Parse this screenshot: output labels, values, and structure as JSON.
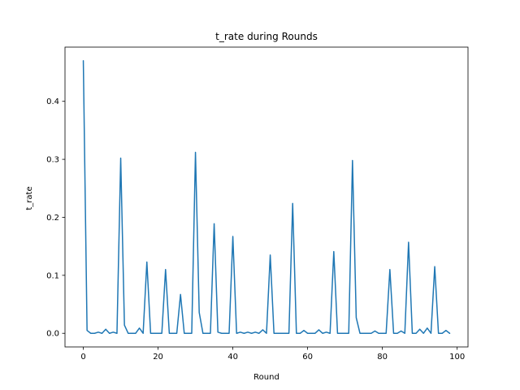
{
  "chart_data": {
    "type": "line",
    "title": "t_rate during Rounds",
    "xlabel": "Round",
    "ylabel": "t_rate",
    "xlim": [
      -4.9,
      102.9
    ],
    "ylim": [
      -0.0235,
      0.4935
    ],
    "xticks": [
      0,
      20,
      40,
      60,
      80,
      100
    ],
    "yticks": [
      0.0,
      0.1,
      0.2,
      0.3,
      0.4
    ],
    "ytick_labels": [
      "0.0",
      "0.1",
      "0.2",
      "0.3",
      "0.4"
    ],
    "grid": false,
    "legend": "none",
    "line_color": "#1f77b4",
    "series": [
      {
        "x": [
          0,
          1,
          2,
          3,
          4,
          5,
          6,
          7,
          8,
          9,
          10,
          11,
          12,
          13,
          14,
          15,
          16,
          17,
          18,
          19,
          20,
          21,
          22,
          23,
          24,
          25,
          26,
          27,
          28,
          29,
          30,
          31,
          32,
          33,
          34,
          35,
          36,
          37,
          38,
          39,
          40,
          41,
          42,
          43,
          44,
          45,
          46,
          47,
          48,
          49,
          50,
          51,
          52,
          53,
          54,
          55,
          56,
          57,
          58,
          59,
          60,
          61,
          62,
          63,
          64,
          65,
          66,
          67,
          68,
          69,
          70,
          71,
          72,
          73,
          74,
          75,
          76,
          77,
          78,
          79,
          80,
          81,
          82,
          83,
          84,
          85,
          86,
          87,
          88,
          89,
          90,
          91,
          92,
          93,
          94,
          95,
          96,
          97,
          98
        ],
        "values": [
          0.47,
          0.005,
          0.0,
          0.0,
          0.002,
          0.0,
          0.007,
          0.0,
          0.002,
          0.0,
          0.302,
          0.014,
          0.0,
          0.0,
          0.0,
          0.009,
          0.0,
          0.123,
          0.0,
          0.0,
          0.0,
          0.0,
          0.11,
          0.0,
          0.0,
          0.0,
          0.067,
          0.0,
          0.0,
          0.0,
          0.312,
          0.036,
          0.0,
          0.0,
          0.0,
          0.189,
          0.002,
          0.0,
          0.0,
          0.0,
          0.167,
          0.0,
          0.002,
          0.0,
          0.002,
          0.0,
          0.002,
          0.0,
          0.006,
          0.0,
          0.135,
          0.0,
          0.0,
          0.0,
          0.0,
          0.0,
          0.224,
          0.0,
          0.0,
          0.005,
          0.0,
          0.0,
          0.0,
          0.006,
          0.0,
          0.002,
          0.0,
          0.141,
          0.0,
          0.0,
          0.0,
          0.0,
          0.298,
          0.027,
          0.0,
          0.0,
          0.0,
          0.0,
          0.004,
          0.0,
          0.0,
          0.0,
          0.11,
          0.0,
          0.0,
          0.004,
          0.0,
          0.157,
          0.0,
          0.0,
          0.007,
          0.0,
          0.009,
          0.0,
          0.115,
          0.0,
          0.0,
          0.005,
          0.0
        ]
      }
    ]
  }
}
